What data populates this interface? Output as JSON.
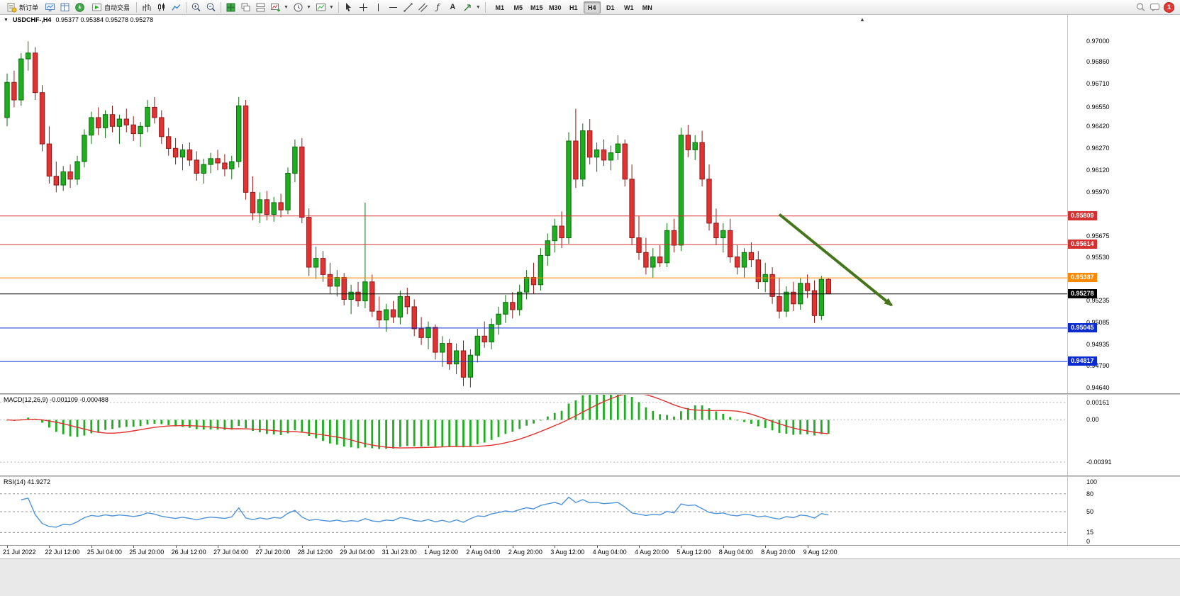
{
  "window": {
    "badge_count": "1"
  },
  "toolbar": {
    "new_order_label": "新订单",
    "autotrading_label": "自动交易",
    "timeframes": [
      "M1",
      "M5",
      "M15",
      "M30",
      "H1",
      "H4",
      "D1",
      "W1",
      "MN"
    ],
    "active_timeframe": "H4"
  },
  "chart": {
    "title": "USDCHF-,H4",
    "ohlc": "0.95377 0.95384 0.95278 0.95278"
  },
  "macd_panel": {
    "label": "MACD(12,26,9) -0.001109 -0.000488"
  },
  "rsi_panel": {
    "label": "RSI(14) 41.9272"
  },
  "chart_data": {
    "type": "candlestick",
    "symbol": "USDCHF-",
    "period": "H4",
    "ohlc_current": {
      "open": 0.95377,
      "high": 0.95384,
      "low": 0.95278,
      "close": 0.95278
    },
    "ylim": [
      0.946,
      0.9718
    ],
    "price_ticks": [
      "0.97000",
      "0.96860",
      "0.96710",
      "0.96550",
      "0.96420",
      "0.96270",
      "0.96120",
      "0.95970",
      "0.95675",
      "0.95530",
      "0.95235",
      "0.95085",
      "0.94935",
      "0.94790",
      "0.94640"
    ],
    "levels": [
      {
        "price": 0.95809,
        "label": "0.95809",
        "color": "#d43030",
        "current": false
      },
      {
        "price": 0.95614,
        "label": "0.95614",
        "color": "#d43030",
        "current": false
      },
      {
        "price": 0.95387,
        "label": "0.95387",
        "color": "#ff8a00",
        "current": false
      },
      {
        "price": 0.95278,
        "label": "0.95278",
        "color": "#000000",
        "current": true
      },
      {
        "price": 0.95045,
        "label": "0.95045",
        "color": "#0b2bd0",
        "current": false
      },
      {
        "price": 0.94817,
        "label": "0.94817",
        "color": "#0b2bd0",
        "current": false
      }
    ],
    "colors": {
      "up": "#1fae1f",
      "up_stroke": "#0c6e0c",
      "down": "#e23232",
      "down_stroke": "#8f1a1a",
      "macd_hist": "#1fae1f",
      "macd_signal": "#e23232",
      "rsi": "#4f93d8",
      "arrow": "#46761c"
    },
    "arrow": {
      "from_index": 110,
      "from_price": 0.9582,
      "to_index": 126,
      "to_price": 0.952
    },
    "macd": {
      "label": "MACD(12,26,9)",
      "value_main": "-0.001109",
      "value_signal": "-0.000488",
      "ticks": [
        "0.00161",
        "0.00",
        "-0.00391"
      ],
      "tick_values": [
        0.00161,
        0,
        -0.00391
      ],
      "ylim": [
        -0.00515,
        0.00232
      ]
    },
    "rsi": {
      "label": "RSI(14)",
      "value": "41.9272",
      "ticks": [
        "100",
        "80",
        "50",
        "15",
        "0"
      ],
      "tick_values": [
        100,
        80,
        50,
        15,
        0
      ],
      "dashed_levels": [
        80,
        50,
        15
      ]
    },
    "time_labels": [
      "21 Jul 2022",
      "22 Jul 12:00",
      "25 Jul 04:00",
      "25 Jul 20:00",
      "26 Jul 12:00",
      "27 Jul 04:00",
      "27 Jul 20:00",
      "28 Jul 12:00",
      "29 Jul 04:00",
      "31 Jul 23:00",
      "1 Aug 12:00",
      "2 Aug 04:00",
      "2 Aug 20:00",
      "3 Aug 12:00",
      "4 Aug 04:00",
      "4 Aug 20:00",
      "5 Aug 12:00",
      "8 Aug 04:00",
      "8 Aug 20:00",
      "9 Aug 12:00"
    ],
    "label_every_n_candles": 6,
    "candles": [
      [
        0.9648,
        0.9678,
        0.9642,
        0.9672
      ],
      [
        0.9672,
        0.968,
        0.9655,
        0.966
      ],
      [
        0.966,
        0.9692,
        0.9656,
        0.9688
      ],
      [
        0.9688,
        0.97,
        0.968,
        0.9692
      ],
      [
        0.9692,
        0.9696,
        0.966,
        0.9665
      ],
      [
        0.9665,
        0.967,
        0.9625,
        0.963
      ],
      [
        0.963,
        0.9642,
        0.9603,
        0.9608
      ],
      [
        0.9608,
        0.9618,
        0.9597,
        0.9602
      ],
      [
        0.9602,
        0.9615,
        0.9598,
        0.9611
      ],
      [
        0.9611,
        0.9616,
        0.96,
        0.9606
      ],
      [
        0.9606,
        0.9622,
        0.9602,
        0.9618
      ],
      [
        0.9618,
        0.964,
        0.9614,
        0.9636
      ],
      [
        0.9636,
        0.9652,
        0.963,
        0.9648
      ],
      [
        0.9648,
        0.9655,
        0.9636,
        0.9641
      ],
      [
        0.9641,
        0.9653,
        0.9634,
        0.965
      ],
      [
        0.965,
        0.9656,
        0.9638,
        0.9642
      ],
      [
        0.9642,
        0.965,
        0.963,
        0.9647
      ],
      [
        0.9647,
        0.9654,
        0.9638,
        0.9643
      ],
      [
        0.9643,
        0.9649,
        0.9632,
        0.9637
      ],
      [
        0.9637,
        0.9645,
        0.9628,
        0.9642
      ],
      [
        0.9642,
        0.966,
        0.9638,
        0.9655
      ],
      [
        0.9655,
        0.9662,
        0.9644,
        0.9648
      ],
      [
        0.9648,
        0.9653,
        0.963,
        0.9635
      ],
      [
        0.9635,
        0.9641,
        0.9622,
        0.9627
      ],
      [
        0.9627,
        0.9634,
        0.9616,
        0.9621
      ],
      [
        0.9621,
        0.963,
        0.9612,
        0.9626
      ],
      [
        0.9626,
        0.9631,
        0.9615,
        0.9619
      ],
      [
        0.9619,
        0.9625,
        0.9605,
        0.961
      ],
      [
        0.961,
        0.962,
        0.9603,
        0.9616
      ],
      [
        0.9616,
        0.9624,
        0.961,
        0.962
      ],
      [
        0.962,
        0.9626,
        0.9612,
        0.9617
      ],
      [
        0.9617,
        0.9623,
        0.9608,
        0.9613
      ],
      [
        0.9613,
        0.9622,
        0.9606,
        0.9618
      ],
      [
        0.9618,
        0.9662,
        0.9614,
        0.9656
      ],
      [
        0.9656,
        0.966,
        0.9592,
        0.9597
      ],
      [
        0.9597,
        0.9608,
        0.9578,
        0.9583
      ],
      [
        0.9583,
        0.9597,
        0.9576,
        0.9592
      ],
      [
        0.9592,
        0.9598,
        0.9578,
        0.9582
      ],
      [
        0.9582,
        0.9594,
        0.9577,
        0.959
      ],
      [
        0.959,
        0.9596,
        0.958,
        0.9585
      ],
      [
        0.9585,
        0.9614,
        0.9582,
        0.961
      ],
      [
        0.961,
        0.9633,
        0.9604,
        0.9628
      ],
      [
        0.9628,
        0.9634,
        0.9576,
        0.958
      ],
      [
        0.958,
        0.9586,
        0.954,
        0.9546
      ],
      [
        0.9546,
        0.956,
        0.9538,
        0.9552
      ],
      [
        0.9552,
        0.9557,
        0.9536,
        0.9541
      ],
      [
        0.9541,
        0.9549,
        0.9528,
        0.9533
      ],
      [
        0.9533,
        0.9544,
        0.9526,
        0.9539
      ],
      [
        0.9539,
        0.9542,
        0.952,
        0.9524
      ],
      [
        0.9524,
        0.9534,
        0.9514,
        0.9529
      ],
      [
        0.9529,
        0.9536,
        0.9519,
        0.9523
      ],
      [
        0.9523,
        0.959,
        0.9518,
        0.9536
      ],
      [
        0.9536,
        0.9541,
        0.9512,
        0.9516
      ],
      [
        0.9516,
        0.9526,
        0.9505,
        0.951
      ],
      [
        0.951,
        0.9521,
        0.9502,
        0.9517
      ],
      [
        0.9517,
        0.9523,
        0.9508,
        0.9512
      ],
      [
        0.9512,
        0.953,
        0.9507,
        0.9526
      ],
      [
        0.9526,
        0.9532,
        0.9514,
        0.9519
      ],
      [
        0.9519,
        0.9524,
        0.9499,
        0.9504
      ],
      [
        0.9504,
        0.9512,
        0.9493,
        0.9498
      ],
      [
        0.9498,
        0.9509,
        0.949,
        0.9505
      ],
      [
        0.9505,
        0.9507,
        0.9483,
        0.9488
      ],
      [
        0.9488,
        0.9499,
        0.9478,
        0.9494
      ],
      [
        0.9494,
        0.9497,
        0.9476,
        0.948
      ],
      [
        0.948,
        0.9494,
        0.9473,
        0.9489
      ],
      [
        0.9489,
        0.9496,
        0.9465,
        0.9471
      ],
      [
        0.9471,
        0.949,
        0.9464,
        0.9486
      ],
      [
        0.9486,
        0.9504,
        0.9481,
        0.9499
      ],
      [
        0.9499,
        0.9509,
        0.9491,
        0.9495
      ],
      [
        0.9495,
        0.9511,
        0.949,
        0.9507
      ],
      [
        0.9507,
        0.9519,
        0.95,
        0.9514
      ],
      [
        0.9514,
        0.9527,
        0.9508,
        0.9522
      ],
      [
        0.9522,
        0.9529,
        0.9511,
        0.9517
      ],
      [
        0.9517,
        0.9534,
        0.9513,
        0.9529
      ],
      [
        0.9529,
        0.9544,
        0.9524,
        0.9539
      ],
      [
        0.9539,
        0.9549,
        0.9528,
        0.9534
      ],
      [
        0.9534,
        0.9559,
        0.953,
        0.9554
      ],
      [
        0.9554,
        0.9569,
        0.9547,
        0.9564
      ],
      [
        0.9564,
        0.9579,
        0.9556,
        0.9574
      ],
      [
        0.9574,
        0.9584,
        0.9559,
        0.9566
      ],
      [
        0.9566,
        0.9638,
        0.9562,
        0.9632
      ],
      [
        0.9632,
        0.9654,
        0.96,
        0.9606
      ],
      [
        0.9606,
        0.9644,
        0.9601,
        0.9639
      ],
      [
        0.9639,
        0.9647,
        0.9616,
        0.9621
      ],
      [
        0.9621,
        0.9631,
        0.9611,
        0.9626
      ],
      [
        0.9626,
        0.9633,
        0.9615,
        0.9619
      ],
      [
        0.9619,
        0.9629,
        0.9612,
        0.9624
      ],
      [
        0.9624,
        0.9636,
        0.9619,
        0.963
      ],
      [
        0.963,
        0.9633,
        0.9601,
        0.9606
      ],
      [
        0.9606,
        0.9616,
        0.9561,
        0.9566
      ],
      [
        0.9566,
        0.9581,
        0.9551,
        0.9556
      ],
      [
        0.9556,
        0.9566,
        0.9541,
        0.9546
      ],
      [
        0.9546,
        0.9559,
        0.9539,
        0.9553
      ],
      [
        0.9553,
        0.9561,
        0.9546,
        0.9549
      ],
      [
        0.9549,
        0.9576,
        0.9546,
        0.9571
      ],
      [
        0.9571,
        0.9579,
        0.9556,
        0.9561
      ],
      [
        0.9561,
        0.9641,
        0.9557,
        0.9636
      ],
      [
        0.9636,
        0.9643,
        0.9621,
        0.9626
      ],
      [
        0.9626,
        0.9636,
        0.9619,
        0.9631
      ],
      [
        0.9631,
        0.9639,
        0.9601,
        0.9606
      ],
      [
        0.9606,
        0.9616,
        0.9571,
        0.9576
      ],
      [
        0.9576,
        0.9586,
        0.9561,
        0.9566
      ],
      [
        0.9566,
        0.9576,
        0.9556,
        0.9571
      ],
      [
        0.9571,
        0.9579,
        0.9549,
        0.9553
      ],
      [
        0.9553,
        0.9561,
        0.9541,
        0.9546
      ],
      [
        0.9546,
        0.9559,
        0.9539,
        0.9556
      ],
      [
        0.9556,
        0.9563,
        0.9546,
        0.9551
      ],
      [
        0.9551,
        0.9557,
        0.9531,
        0.9536
      ],
      [
        0.9536,
        0.9549,
        0.9529,
        0.9541
      ],
      [
        0.9541,
        0.9546,
        0.9521,
        0.9526
      ],
      [
        0.9526,
        0.9539,
        0.9511,
        0.9516
      ],
      [
        0.9516,
        0.9533,
        0.9512,
        0.9529
      ],
      [
        0.9529,
        0.9536,
        0.9516,
        0.9521
      ],
      [
        0.9521,
        0.9539,
        0.9517,
        0.9535
      ],
      [
        0.9535,
        0.9541,
        0.9525,
        0.953
      ],
      [
        0.953,
        0.9537,
        0.9508,
        0.9513
      ],
      [
        0.9513,
        0.954,
        0.951,
        0.95377
      ],
      [
        0.95377,
        0.95384,
        0.95278,
        0.95278
      ]
    ]
  }
}
